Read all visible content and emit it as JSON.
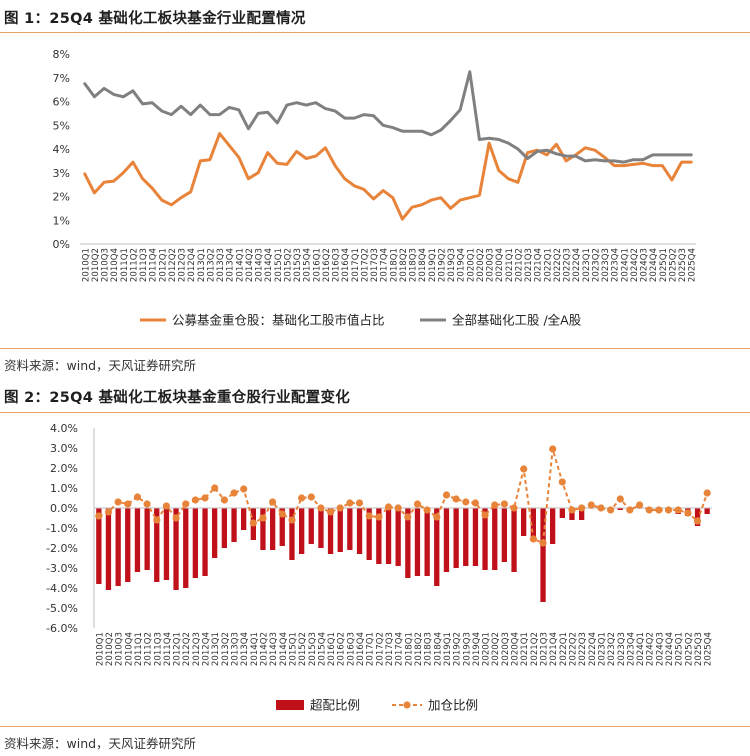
{
  "figure1": {
    "title": "图 1：25Q4 基础化工板块基金行业配置情况",
    "source": "资料来源：wind，天风证券研究所"
  },
  "figure2": {
    "title": "图 2：25Q4 基础化工板块基金重仓股行业配置变化",
    "source": "资料来源：wind，天风证券研究所"
  },
  "chart_data": [
    {
      "type": "line",
      "title": "",
      "xlabel": "",
      "ylabel": "",
      "ylim": [
        0,
        8
      ],
      "y_ticks": [
        "0%",
        "1%",
        "2%",
        "3%",
        "4%",
        "5%",
        "6%",
        "7%",
        "8%"
      ],
      "grid": false,
      "legend_position": "bottom",
      "categories": [
        "2010Q1",
        "2010Q2",
        "2010Q3",
        "2010Q4",
        "2011Q1",
        "2011Q2",
        "2011Q3",
        "2011Q4",
        "2012Q1",
        "2012Q2",
        "2012Q3",
        "2012Q4",
        "2013Q1",
        "2013Q2",
        "2013Q3",
        "2013Q4",
        "2014Q1",
        "2014Q2",
        "2014Q3",
        "2014Q4",
        "2015Q1",
        "2015Q2",
        "2015Q3",
        "2015Q4",
        "2016Q1",
        "2016Q2",
        "2016Q3",
        "2016Q4",
        "2017Q1",
        "2017Q2",
        "2017Q3",
        "2017Q4",
        "2018Q1",
        "2018Q2",
        "2018Q3",
        "2018Q4",
        "2019Q1",
        "2019Q2",
        "2019Q3",
        "2019Q4",
        "2020Q1",
        "2020Q2",
        "2020Q3",
        "2020Q4",
        "2021Q1",
        "2021Q2",
        "2021Q3",
        "2021Q4",
        "2022Q1",
        "2022Q2",
        "2022Q3",
        "2022Q4",
        "2023Q1",
        "2023Q2",
        "2023Q3",
        "2023Q4",
        "2024Q1",
        "2024Q2",
        "2024Q3",
        "2024Q4",
        "2025Q1",
        "2025Q2",
        "2025Q3",
        "2025Q4"
      ],
      "series": [
        {
          "name": "公募基金重仓股：基础化工股市值占比",
          "color": "#e8833a",
          "values": [
            2.95,
            2.15,
            2.6,
            2.65,
            3.0,
            3.45,
            2.75,
            2.35,
            1.85,
            1.65,
            1.95,
            2.2,
            3.5,
            3.55,
            4.65,
            4.15,
            3.65,
            2.75,
            3.0,
            3.85,
            3.4,
            3.35,
            3.9,
            3.6,
            3.7,
            4.05,
            3.3,
            2.75,
            2.45,
            2.3,
            1.9,
            2.25,
            1.95,
            1.05,
            1.55,
            1.65,
            1.85,
            1.95,
            1.5,
            1.85,
            1.95,
            2.05,
            4.25,
            3.1,
            2.75,
            2.6,
            3.85,
            3.95,
            3.75,
            4.2,
            3.5,
            3.75,
            4.05,
            3.95,
            3.65,
            3.3,
            3.3,
            3.35,
            3.4,
            3.3,
            3.3,
            2.7,
            3.45,
            3.45
          ]
        },
        {
          "name": "全部基础化工股 /全A股",
          "color": "#808080",
          "values": [
            6.75,
            6.2,
            6.55,
            6.3,
            6.2,
            6.45,
            5.9,
            5.95,
            5.6,
            5.45,
            5.8,
            5.45,
            5.85,
            5.45,
            5.45,
            5.75,
            5.65,
            4.85,
            5.5,
            5.55,
            5.1,
            5.85,
            5.95,
            5.85,
            5.95,
            5.7,
            5.6,
            5.3,
            5.3,
            5.45,
            5.4,
            5.0,
            4.9,
            4.75,
            4.75,
            4.75,
            4.6,
            4.8,
            5.2,
            5.65,
            7.25,
            4.4,
            4.45,
            4.4,
            4.25,
            4.0,
            3.6,
            3.9,
            3.95,
            3.8,
            3.7,
            3.7,
            3.5,
            3.55,
            3.5,
            3.5,
            3.45,
            3.55,
            3.55,
            3.75,
            3.75,
            3.75,
            3.75,
            3.75
          ]
        }
      ]
    },
    {
      "type": "bar",
      "title": "",
      "xlabel": "",
      "ylabel": "",
      "ylim": [
        -6,
        4
      ],
      "y_ticks": [
        "4.0%",
        "3.0%",
        "2.0%",
        "1.0%",
        "0.0%",
        "-1.0%",
        "-2.0%",
        "-3.0%",
        "-4.0%",
        "-5.0%",
        "-6.0%"
      ],
      "grid": false,
      "legend_position": "bottom",
      "categories": [
        "2010Q1",
        "2010Q2",
        "2010Q3",
        "2010Q4",
        "2011Q1",
        "2011Q2",
        "2011Q3",
        "2011Q4",
        "2012Q1",
        "2012Q2",
        "2012Q3",
        "2012Q4",
        "2013Q1",
        "2013Q2",
        "2013Q3",
        "2013Q4",
        "2014Q1",
        "2014Q2",
        "2014Q3",
        "2014Q4",
        "2015Q1",
        "2015Q2",
        "2015Q3",
        "2015Q4",
        "2016Q1",
        "2016Q2",
        "2016Q3",
        "2016Q4",
        "2017Q1",
        "2017Q2",
        "2017Q3",
        "2017Q4",
        "2018Q1",
        "2018Q2",
        "2018Q3",
        "2018Q4",
        "2019Q1",
        "2019Q2",
        "2019Q3",
        "2019Q4",
        "2020Q1",
        "2020Q2",
        "2020Q3",
        "2020Q4",
        "2021Q1",
        "2021Q2",
        "2021Q3",
        "2021Q4",
        "2022Q1",
        "2022Q2",
        "2022Q3",
        "2022Q4",
        "2023Q1",
        "2023Q2",
        "2023Q3",
        "2023Q4",
        "2024Q1",
        "2024Q2",
        "2024Q3",
        "2024Q4",
        "2025Q1",
        "2025Q2",
        "2025Q3",
        "2025Q4"
      ],
      "series": [
        {
          "name": "超配比例",
          "type": "bar",
          "color": "#c0101a",
          "values": [
            -3.8,
            -4.1,
            -3.9,
            -3.7,
            -3.2,
            -3.1,
            -3.7,
            -3.6,
            -4.1,
            -4.0,
            -3.5,
            -3.4,
            -2.5,
            -2.0,
            -1.7,
            -1.1,
            -1.6,
            -2.1,
            -2.1,
            -1.9,
            -2.6,
            -2.3,
            -1.8,
            -2.0,
            -2.3,
            -2.2,
            -2.1,
            -2.3,
            -2.6,
            -2.8,
            -2.8,
            -2.9,
            -3.5,
            -3.4,
            -3.4,
            -3.9,
            -3.2,
            -3.0,
            -2.9,
            -2.9,
            -3.1,
            -3.1,
            -2.7,
            -3.2,
            -1.4,
            -1.5,
            -4.7,
            -1.8,
            -0.5,
            -0.6,
            -0.6,
            0.0,
            -0.1,
            0.0,
            -0.1,
            0.0,
            0.0,
            -0.1,
            0.0,
            -0.2,
            -0.3,
            -0.4,
            -0.9,
            -0.3
          ]
        },
        {
          "name": "加仓比例",
          "type": "line",
          "color": "#e8833a",
          "values": [
            -0.4,
            -0.2,
            0.3,
            0.2,
            0.55,
            0.2,
            -0.6,
            0.1,
            -0.5,
            0.2,
            0.4,
            0.5,
            1.0,
            0.4,
            0.75,
            0.95,
            -0.75,
            -0.5,
            0.3,
            -0.3,
            -0.6,
            0.5,
            0.55,
            0.0,
            -0.2,
            0.0,
            0.25,
            0.25,
            -0.4,
            -0.45,
            0.05,
            0.0,
            -0.45,
            0.2,
            -0.1,
            -0.45,
            0.65,
            0.45,
            0.3,
            0.25,
            -0.35,
            0.15,
            0.2,
            0.0,
            1.95,
            -1.55,
            -1.75,
            2.95,
            1.3,
            -0.1,
            0.0,
            0.15,
            0.0,
            -0.1,
            0.45,
            -0.1,
            0.15,
            -0.1,
            -0.1,
            -0.1,
            -0.1,
            -0.25,
            -0.65,
            0.75
          ]
        }
      ]
    }
  ]
}
